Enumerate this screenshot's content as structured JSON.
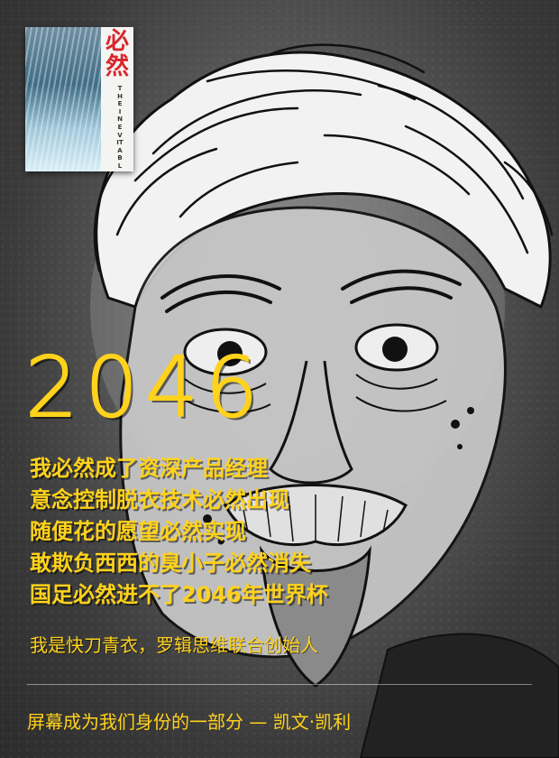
{
  "book": {
    "title": "必然",
    "subtitle": "THE INEVITABLE"
  },
  "headline": {
    "year": "2046"
  },
  "predictions": [
    "我必然成了资深产品经理",
    "意念控制脱衣技术必然出现",
    "随便花的愿望必然实现",
    "敢欺负西西的臭小子必然消失",
    "国足必然进不了2046年世界杯"
  ],
  "author_line": "我是快刀青衣，罗辑思维联合创始人",
  "quote": "屏幕成为我们身份的一部分 — 凯文·凯利",
  "colors": {
    "accent": "#ffd21c",
    "book_title": "#d8262c",
    "background": "#3d3d3d"
  }
}
